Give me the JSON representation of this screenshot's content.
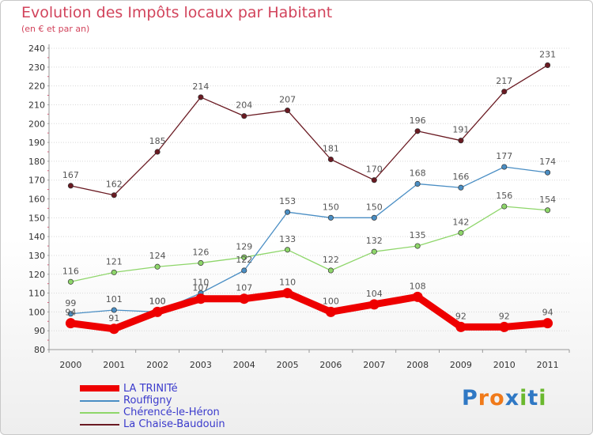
{
  "title": "Evolution des Impôts locaux par Habitant",
  "subtitle": "(en € et par an)",
  "logo": {
    "letters": [
      "P",
      "r",
      "o",
      "x",
      "i",
      "t",
      "i"
    ],
    "colors": [
      "#2f78c4",
      "#f07a1a",
      "#f07a1a",
      "#2f78c4",
      "#6ab82e",
      "#2f78c4",
      "#6ab82e"
    ]
  },
  "chart_data": {
    "type": "line",
    "title": "Evolution des Impôts locaux par Habitant",
    "subtitle": "(en € et par an)",
    "xlabel": "",
    "ylabel": "",
    "x": [
      "2000",
      "2001",
      "2002",
      "2003",
      "2004",
      "2005",
      "2006",
      "2007",
      "2008",
      "2009",
      "2010",
      "2011"
    ],
    "ylim": [
      80,
      240
    ],
    "yticks": [
      80,
      90,
      100,
      110,
      120,
      130,
      140,
      150,
      160,
      170,
      180,
      190,
      200,
      210,
      220,
      230,
      240
    ],
    "grid": "horizontal",
    "legend_position": "bottom-left",
    "series": [
      {
        "name": "La Chaise-Baudouin",
        "color": "#6a1a22",
        "values": [
          167,
          162,
          185,
          214,
          204,
          207,
          181,
          170,
          196,
          191,
          217,
          231
        ]
      },
      {
        "name": "Chérencé-le-Héron",
        "color": "#8ed66a",
        "values": [
          116,
          121,
          124,
          126,
          129,
          133,
          122,
          132,
          135,
          142,
          156,
          154
        ]
      },
      {
        "name": "Rouffigny",
        "color": "#4a8ec4",
        "values": [
          99,
          101,
          100,
          110,
          122,
          153,
          150,
          150,
          168,
          166,
          177,
          174
        ]
      },
      {
        "name": "LA TRINITé",
        "color": "#ee0000",
        "values": [
          94,
          91,
          100,
          107,
          107,
          110,
          100,
          104,
          108,
          92,
          92,
          94
        ]
      }
    ],
    "legend": [
      {
        "name": "LA TRINITé",
        "color": "#ee0000"
      },
      {
        "name": "Rouffigny",
        "color": "#4a8ec4"
      },
      {
        "name": "Chérencé-le-Héron",
        "color": "#8ed66a"
      },
      {
        "name": "La Chaise-Baudouin",
        "color": "#6a1a22"
      }
    ]
  }
}
